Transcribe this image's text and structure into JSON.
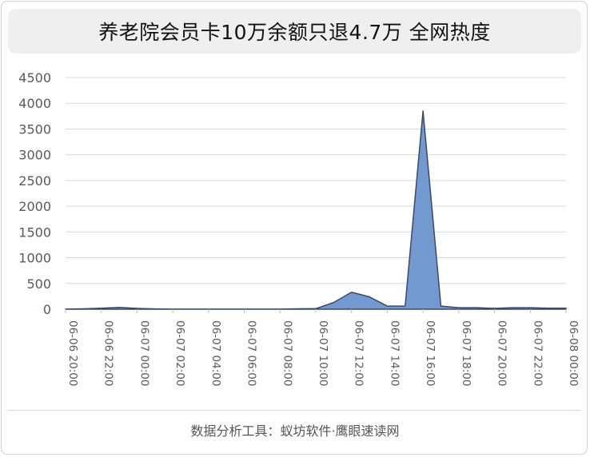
{
  "chart_data": {
    "type": "area",
    "title": "养老院会员卡10万余额只退4.7万 全网热度",
    "footer": "数据分析工具：蚁坊软件·鹰眼速读网",
    "ylim": [
      0,
      4500
    ],
    "yticks": [
      0,
      500,
      1000,
      1500,
      2000,
      2500,
      3000,
      3500,
      4000,
      4500
    ],
    "grid": true,
    "x_tick_labels": [
      "06-06 20:00",
      "06-06 22:00",
      "06-07 00:00",
      "06-07 02:00",
      "06-07 04:00",
      "06-07 06:00",
      "06-07 08:00",
      "06-07 10:00",
      "06-07 12:00",
      "06-07 14:00",
      "06-07 16:00",
      "06-07 18:00",
      "06-07 20:00",
      "06-07 22:00",
      "06-08 00:00"
    ],
    "x_hours": [
      0,
      1,
      2,
      3,
      4,
      5,
      6,
      7,
      8,
      9,
      10,
      11,
      12,
      13,
      14,
      15,
      16,
      17,
      18,
      19,
      20,
      21,
      22,
      23,
      24,
      25,
      26,
      27,
      28
    ],
    "values": [
      2,
      8,
      20,
      35,
      15,
      5,
      2,
      2,
      2,
      2,
      2,
      2,
      2,
      8,
      10,
      130,
      330,
      240,
      60,
      60,
      3850,
      60,
      30,
      30,
      15,
      30,
      30,
      20,
      20
    ],
    "colors": {
      "fill": "#7399d1",
      "stroke": "#3a4a66",
      "grid": "#d9d9d9"
    }
  }
}
